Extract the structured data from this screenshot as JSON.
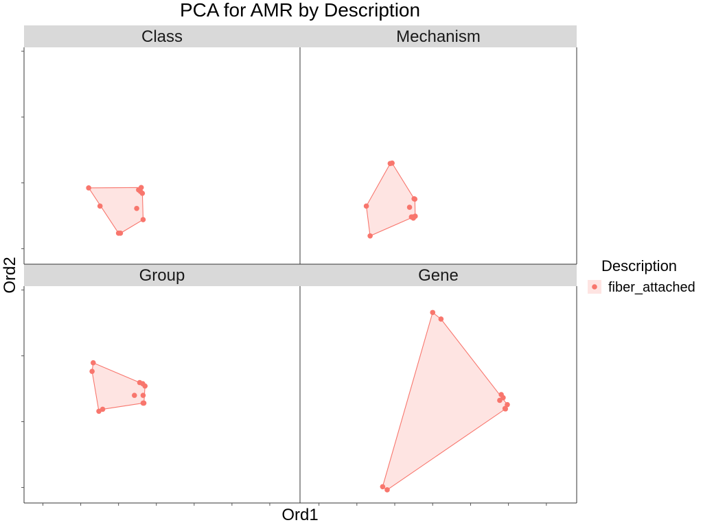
{
  "chart_data": {
    "type": "scatter",
    "title": "PCA for AMR by Description",
    "xlabel": "Ord1",
    "ylabel": "Ord2",
    "xlim": [
      -3.3,
      4.0
    ],
    "ylim": [
      -3.6,
      2.0
    ],
    "x_ticks": [
      -2.8,
      -1.8,
      -0.8,
      0.2,
      1.2,
      2.2,
      3.2
    ],
    "y_ticks": [
      -3.2,
      -1.5,
      0.2,
      1.9
    ],
    "grid": false,
    "legend": {
      "title": "Description",
      "position": "right",
      "entries": [
        {
          "label": "fiber_attached",
          "color": "#F8766D"
        }
      ]
    },
    "hull": true,
    "panels": [
      {
        "name": "Class",
        "points": [
          [
            -1.59,
            -1.63
          ],
          [
            -1.29,
            -2.1
          ],
          [
            -0.8,
            -2.8
          ],
          [
            -0.75,
            -2.8
          ],
          [
            -0.32,
            -2.16
          ],
          [
            -0.27,
            -1.68
          ],
          [
            -0.22,
            -1.72
          ],
          [
            -0.2,
            -1.62
          ],
          [
            -0.17,
            -1.77
          ],
          [
            -0.15,
            -2.45
          ]
        ],
        "hull": [
          [
            -1.59,
            -1.63
          ],
          [
            -0.2,
            -1.62
          ],
          [
            -0.17,
            -1.77
          ],
          [
            -0.15,
            -2.45
          ],
          [
            -0.75,
            -2.8
          ],
          [
            -0.8,
            -2.8
          ]
        ]
      },
      {
        "name": "Mechanism",
        "points": [
          [
            -1.55,
            -2.1
          ],
          [
            -1.45,
            -2.87
          ],
          [
            -0.92,
            -1.0
          ],
          [
            -0.87,
            -0.99
          ],
          [
            -0.41,
            -2.13
          ],
          [
            -0.36,
            -2.38
          ],
          [
            -0.32,
            -2.38
          ],
          [
            -0.31,
            -2.41
          ],
          [
            -0.29,
            -1.91
          ],
          [
            -0.27,
            -1.92
          ],
          [
            -0.26,
            -2.36
          ]
        ],
        "hull": [
          [
            -1.55,
            -2.1
          ],
          [
            -0.92,
            -1.0
          ],
          [
            -0.87,
            -0.99
          ],
          [
            -0.29,
            -1.91
          ],
          [
            -0.27,
            -1.92
          ],
          [
            -0.26,
            -2.36
          ],
          [
            -1.45,
            -2.87
          ]
        ]
      },
      {
        "name": "Group",
        "points": [
          [
            -1.5,
            -0.2
          ],
          [
            -1.47,
            0.02
          ],
          [
            -1.32,
            -1.23
          ],
          [
            -1.22,
            -1.18
          ],
          [
            -0.38,
            -0.82
          ],
          [
            -0.24,
            -0.49
          ],
          [
            -0.16,
            -0.52
          ],
          [
            -0.15,
            -1.02
          ],
          [
            -0.15,
            -0.82
          ],
          [
            -0.13,
            -1.02
          ],
          [
            -0.1,
            -0.58
          ]
        ],
        "hull": [
          [
            -1.47,
            0.02
          ],
          [
            -0.24,
            -0.49
          ],
          [
            -0.1,
            -0.58
          ],
          [
            -0.13,
            -1.02
          ],
          [
            -0.15,
            -1.02
          ],
          [
            -1.22,
            -1.18
          ],
          [
            -1.32,
            -1.23
          ],
          [
            -1.5,
            -0.2
          ]
        ]
      },
      {
        "name": "Gene",
        "points": [
          [
            -1.12,
            -3.18
          ],
          [
            -1.0,
            -3.26
          ],
          [
            0.2,
            1.32
          ],
          [
            0.42,
            1.15
          ],
          [
            1.97,
            -0.95
          ],
          [
            2.01,
            -0.8
          ],
          [
            2.06,
            -0.88
          ],
          [
            2.11,
            -1.16
          ],
          [
            2.12,
            -1.17
          ],
          [
            2.17,
            -1.06
          ]
        ],
        "hull": [
          [
            0.2,
            1.32
          ],
          [
            0.42,
            1.15
          ],
          [
            2.17,
            -1.06
          ],
          [
            2.12,
            -1.17
          ],
          [
            -1.0,
            -3.26
          ],
          [
            -1.12,
            -3.18
          ]
        ]
      }
    ]
  }
}
